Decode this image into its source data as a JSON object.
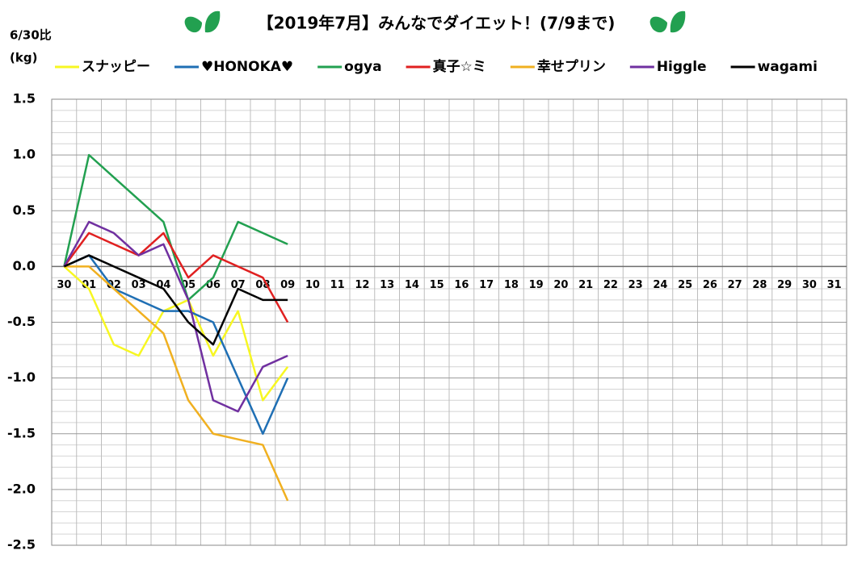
{
  "chart_data": {
    "type": "line",
    "title": "【2019年7月】みんなでダイエット！(7/9まで)",
    "ylabel": "6/30比",
    "yunit": "(kg)",
    "categories": [
      "30",
      "01",
      "02",
      "03",
      "04",
      "05",
      "06",
      "07",
      "08",
      "09",
      "10",
      "11",
      "12",
      "13",
      "14",
      "15",
      "16",
      "17",
      "18",
      "19",
      "20",
      "21",
      "22",
      "23",
      "24",
      "25",
      "26",
      "27",
      "28",
      "29",
      "30",
      "31"
    ],
    "series": [
      {
        "name": "スナッピー",
        "color": "#f7f722",
        "values": [
          0,
          -0.2,
          -0.7,
          -0.8,
          -0.4,
          -0.3,
          -0.8,
          -0.4,
          -1.2,
          -0.9,
          null,
          null,
          null,
          null,
          null,
          null,
          null,
          null,
          null,
          null,
          null,
          null,
          null,
          null,
          null,
          null,
          null,
          null,
          null,
          null,
          null,
          null
        ]
      },
      {
        "name": "♥HONOKA♥",
        "color": "#1f6fb4",
        "values": [
          0,
          0.1,
          -0.2,
          -0.3,
          -0.4,
          -0.4,
          -0.5,
          -1.0,
          -1.5,
          -1.0,
          null,
          null,
          null,
          null,
          null,
          null,
          null,
          null,
          null,
          null,
          null,
          null,
          null,
          null,
          null,
          null,
          null,
          null,
          null,
          null,
          null,
          null
        ]
      },
      {
        "name": "ogya",
        "color": "#22a050",
        "values": [
          0,
          1.0,
          0.8,
          0.6,
          0.4,
          -0.3,
          -0.1,
          0.4,
          0.3,
          0.2,
          null,
          null,
          null,
          null,
          null,
          null,
          null,
          null,
          null,
          null,
          null,
          null,
          null,
          null,
          null,
          null,
          null,
          null,
          null,
          null,
          null,
          null
        ]
      },
      {
        "name": "真子☆ミ",
        "color": "#e02020",
        "values": [
          0,
          0.3,
          0.2,
          0.1,
          0.3,
          -0.1,
          0.1,
          0.0,
          -0.1,
          -0.5,
          null,
          null,
          null,
          null,
          null,
          null,
          null,
          null,
          null,
          null,
          null,
          null,
          null,
          null,
          null,
          null,
          null,
          null,
          null,
          null,
          null,
          null
        ]
      },
      {
        "name": "幸せプリン",
        "color": "#f0b020",
        "values": [
          0,
          0,
          -0.2,
          -0.4,
          -0.6,
          -1.2,
          -1.5,
          -1.55,
          -1.6,
          -2.1,
          null,
          null,
          null,
          null,
          null,
          null,
          null,
          null,
          null,
          null,
          null,
          null,
          null,
          null,
          null,
          null,
          null,
          null,
          null,
          null,
          null,
          null
        ]
      },
      {
        "name": "Higgle",
        "color": "#7030a0",
        "values": [
          0,
          0.4,
          0.3,
          0.1,
          0.2,
          -0.3,
          -1.2,
          -1.3,
          -0.9,
          -0.8,
          null,
          null,
          null,
          null,
          null,
          null,
          null,
          null,
          null,
          null,
          null,
          null,
          null,
          null,
          null,
          null,
          null,
          null,
          null,
          null,
          null,
          null
        ]
      },
      {
        "name": "wagami",
        "color": "#000000",
        "values": [
          0,
          0.1,
          0.0,
          -0.1,
          -0.2,
          -0.5,
          -0.7,
          -0.2,
          -0.3,
          -0.3,
          null,
          null,
          null,
          null,
          null,
          null,
          null,
          null,
          null,
          null,
          null,
          null,
          null,
          null,
          null,
          null,
          null,
          null,
          null,
          null,
          null,
          null
        ]
      }
    ],
    "ylim": [
      -2.5,
      1.5
    ],
    "yticks": [
      1.5,
      {
        "value": 1.0,
        "label": "1.0"
      },
      0.5,
      {
        "value": 0.0,
        "label": "0.0"
      },
      -0.5,
      {
        "value": -1.0,
        "label": "-1.0"
      },
      -1.5,
      {
        "value": -2.0,
        "label": "-2.0"
      },
      -2.5
    ],
    "minor_divisions": 5,
    "grid": true,
    "legend": "top"
  }
}
